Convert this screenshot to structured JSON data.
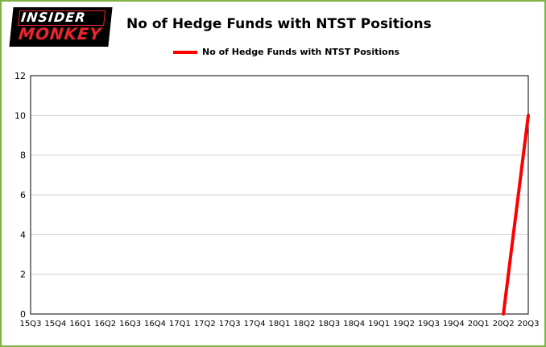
{
  "branding": {
    "line1": "INSIDER",
    "line2": "MONKEY"
  },
  "header": {
    "title": "No of Hedge Funds with NTST Positions"
  },
  "legend": {
    "label": "No of Hedge Funds with NTST Positions"
  },
  "colors": {
    "frame_border": "#7cb342",
    "line": "#fe0000",
    "grid": "#d3d3d3",
    "axis": "#000000",
    "logo_red": "#e8262d"
  },
  "chart_data": {
    "type": "line",
    "title": "No of Hedge Funds with NTST Positions",
    "categories": [
      "15Q3",
      "15Q4",
      "16Q1",
      "16Q2",
      "16Q3",
      "16Q4",
      "17Q1",
      "17Q2",
      "17Q3",
      "17Q4",
      "18Q1",
      "18Q2",
      "18Q3",
      "18Q4",
      "19Q1",
      "19Q2",
      "19Q3",
      "19Q4",
      "20Q1",
      "20Q2",
      "20Q3"
    ],
    "series": [
      {
        "name": "No of Hedge Funds with NTST Positions",
        "color": "#fe0000",
        "values": [
          null,
          null,
          null,
          null,
          null,
          null,
          null,
          null,
          null,
          null,
          null,
          null,
          null,
          null,
          null,
          null,
          null,
          null,
          null,
          0,
          10
        ]
      }
    ],
    "xlabel": "",
    "ylabel": "",
    "ylim": [
      0,
      12
    ],
    "yticks": [
      0,
      2,
      4,
      6,
      8,
      10,
      12
    ],
    "grid": true,
    "legend_position": "top"
  }
}
